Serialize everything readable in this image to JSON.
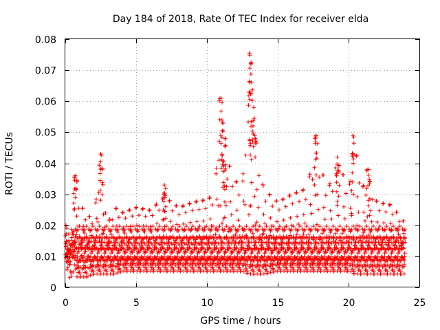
{
  "chart_data": {
    "type": "scatter",
    "title": "Day 184 of 2018, Rate Of TEC Index for receiver elda",
    "xlabel": "GPS time / hours",
    "ylabel": "ROTI / TECUs",
    "xlim": [
      0,
      25
    ],
    "ylim": [
      0,
      0.08
    ],
    "x_ticks": [
      0,
      5,
      10,
      15,
      20,
      25
    ],
    "y_ticks": [
      0,
      0.01,
      0.02,
      0.03,
      0.04,
      0.05,
      0.06,
      0.07,
      0.08
    ],
    "x_tick_labels": [
      "0",
      "5",
      "10",
      "15",
      "20",
      "25"
    ],
    "y_tick_labels": [
      "0",
      "0.01",
      "0.02",
      "0.03",
      "0.04",
      "0.05",
      "0.06",
      "0.07",
      "0.08"
    ],
    "grid": true,
    "marker": "+",
    "color": "#ff0000",
    "series": [
      {
        "name": "ROTI",
        "envelope_x": [
          0,
          0.5,
          0.7,
          1.0,
          1.5,
          2.0,
          2.5,
          3.0,
          3.5,
          4.0,
          5.0,
          6.0,
          7.0,
          8.0,
          9.0,
          10.0,
          10.5,
          11.0,
          11.5,
          12.0,
          12.5,
          13.0,
          13.5,
          14.0,
          15.0,
          16.0,
          17.0,
          17.7,
          18.5,
          19.0,
          19.5,
          20.0,
          20.5,
          21.0,
          21.5,
          22.0,
          23.0,
          24.0
        ],
        "typical_min": [
          0.003,
          0.003,
          0.003,
          0.003,
          0.003,
          0.004,
          0.004,
          0.004,
          0.004,
          0.005,
          0.005,
          0.005,
          0.005,
          0.005,
          0.005,
          0.005,
          0.005,
          0.005,
          0.005,
          0.005,
          0.005,
          0.004,
          0.004,
          0.004,
          0.005,
          0.005,
          0.005,
          0.005,
          0.005,
          0.005,
          0.005,
          0.005,
          0.004,
          0.004,
          0.004,
          0.004,
          0.004,
          0.004
        ],
        "typical_max": [
          0.02,
          0.026,
          0.036,
          0.03,
          0.025,
          0.024,
          0.043,
          0.022,
          0.028,
          0.026,
          0.028,
          0.027,
          0.032,
          0.028,
          0.03,
          0.031,
          0.033,
          0.061,
          0.045,
          0.038,
          0.036,
          0.076,
          0.052,
          0.035,
          0.03,
          0.033,
          0.035,
          0.049,
          0.035,
          0.04,
          0.042,
          0.035,
          0.049,
          0.036,
          0.038,
          0.03,
          0.029,
          0.022
        ],
        "peaks": [
          {
            "x": 0.7,
            "y": 0.036
          },
          {
            "x": 2.5,
            "y": 0.043
          },
          {
            "x": 7.0,
            "y": 0.033
          },
          {
            "x": 11.0,
            "y": 0.061
          },
          {
            "x": 11.1,
            "y": 0.053
          },
          {
            "x": 11.3,
            "y": 0.048
          },
          {
            "x": 13.0,
            "y": 0.0755
          },
          {
            "x": 13.1,
            "y": 0.072
          },
          {
            "x": 13.3,
            "y": 0.058
          },
          {
            "x": 17.7,
            "y": 0.049
          },
          {
            "x": 19.2,
            "y": 0.042
          },
          {
            "x": 20.3,
            "y": 0.049
          },
          {
            "x": 21.4,
            "y": 0.038
          }
        ]
      }
    ]
  }
}
